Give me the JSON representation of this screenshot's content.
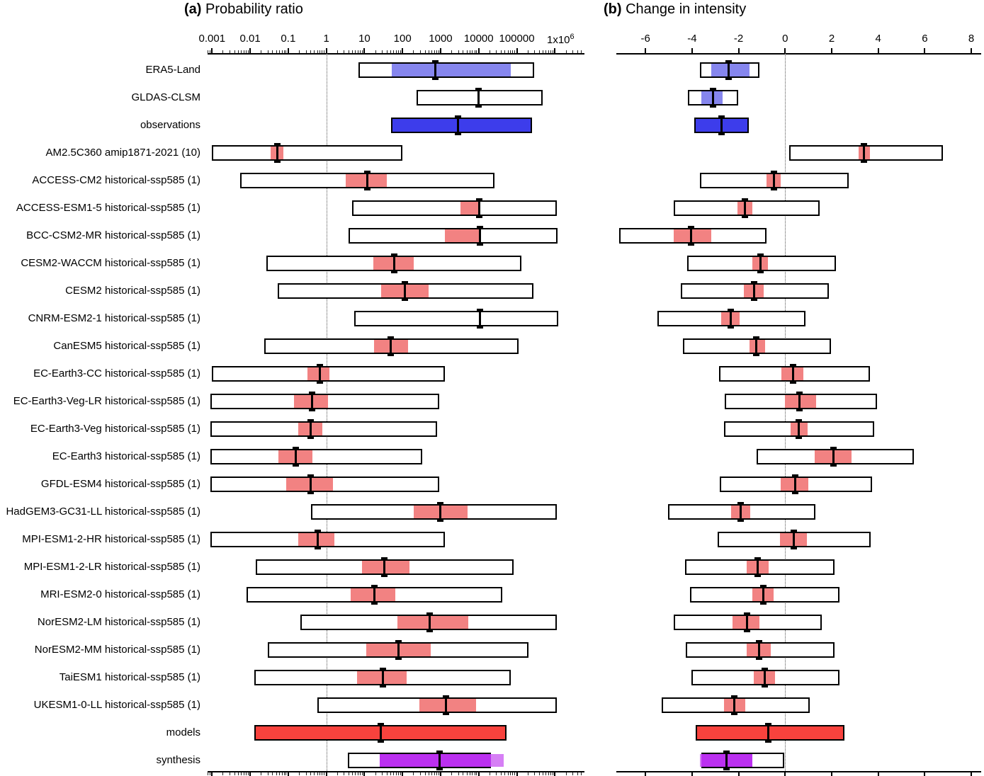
{
  "chart_data": {
    "type": "table",
    "description_title_a": "Probability ratio",
    "description_title_b": "Change in intensity",
    "panels": {
      "a": {
        "title_prefix": "(a)",
        "title": "Probability ratio",
        "scale": "log",
        "tick_values": [
          0.001,
          0.01,
          0.1,
          1,
          10,
          100,
          1000,
          10000,
          100000,
          1000000
        ],
        "tick_labels": [
          "0.001",
          "0.01",
          "0.1",
          "1",
          "10",
          "100",
          "1000",
          "10000",
          "100000",
          "1x10"
        ],
        "last_tick_superscript": "6",
        "reference_line": 1
      },
      "b": {
        "title_prefix": "(b)",
        "title": "Change in intensity",
        "scale": "linear",
        "tick_values": [
          -6,
          -4,
          -2,
          0,
          2,
          4,
          6,
          8
        ],
        "tick_labels": [
          "-6",
          "-4",
          "-2",
          "0",
          "2",
          "4",
          "6",
          "8"
        ],
        "reference_line": 0
      }
    },
    "colors": {
      "observation_fill": "#3d3deb",
      "observation_band": "#8686ee",
      "model_band": "#f28282",
      "models_fill": "#f8423d",
      "synthesis_dark": "#bb30f0",
      "synthesis_light": "#d67ff5",
      "box_fill": "#ffffff",
      "box_border": "#000000"
    },
    "rows": [
      {
        "label": "ERA5-Land",
        "group": "obs-dataset",
        "pr": {
          "range": [
            7,
            290000
          ],
          "best": [
            52,
            70000
          ],
          "marker": 730
        },
        "di": {
          "range": [
            -3.65,
            -1.11
          ],
          "best": [
            -3.17,
            -1.52
          ],
          "marker": -2.44
        }
      },
      {
        "label": "GLDAS-CLSM",
        "group": "obs-dataset",
        "pr": {
          "range": [
            230,
            480000
          ],
          "best": null,
          "marker": 10000
        },
        "di": {
          "range": [
            -4.18,
            -2.03
          ],
          "best": [
            -3.6,
            -2.69
          ],
          "marker": -3.09
        }
      },
      {
        "label": "observations",
        "group": "observations",
        "pr": {
          "range": [
            50,
            250000
          ],
          "best": null,
          "marker": 2800
        },
        "di": {
          "range": [
            -3.91,
            -1.57
          ],
          "best": null,
          "marker": -2.74
        }
      },
      {
        "label": "AM2.5C360 amip1871-2021 (10)",
        "group": "model",
        "pr": {
          "range": [
            0.001,
            100
          ],
          "best": [
            0.034,
            0.073
          ],
          "marker": 0.052
        },
        "di": {
          "range": [
            0.18,
            6.78
          ],
          "best": [
            3.17,
            3.65
          ],
          "marker": 3.4
        }
      },
      {
        "label": "ACCESS-CM2 historical-ssp585 (1)",
        "group": "model",
        "pr": {
          "range": [
            0.0054,
            26000
          ],
          "best": [
            3.2,
            39
          ],
          "marker": 12
        },
        "di": {
          "range": [
            -3.65,
            2.74
          ],
          "best": [
            -0.81,
            -0.2
          ],
          "marker": -0.49
        }
      },
      {
        "label": "ACCESS-ESM1-5 historical-ssp585 (1)",
        "group": "model",
        "pr": {
          "range": [
            4.8,
            1100000
          ],
          "best": [
            3300,
            10000
          ],
          "marker": 10500
        },
        "di": {
          "range": [
            -4.79,
            1.47
          ],
          "best": [
            -2.05,
            -1.4
          ],
          "marker": -1.72
        }
      },
      {
        "label": "BCC-CSM2-MR historical-ssp585 (1)",
        "group": "model",
        "pr": {
          "range": [
            3.8,
            1150000
          ],
          "best": [
            1300,
            10000
          ],
          "marker": 11000
        },
        "di": {
          "range": [
            -7.12,
            -0.81
          ],
          "best": [
            -4.79,
            -3.17
          ],
          "marker": -4.04
        }
      },
      {
        "label": "CESM2-WACCM historical-ssp585 (1)",
        "group": "model",
        "pr": {
          "range": [
            0.027,
            130000
          ],
          "best": [
            17,
            200
          ],
          "marker": 60
        },
        "di": {
          "range": [
            -4.21,
            2.18
          ],
          "best": [
            -1.4,
            -0.73
          ],
          "marker": -1.07
        }
      },
      {
        "label": "CESM2 historical-ssp585 (1)",
        "group": "model",
        "pr": {
          "range": [
            0.052,
            270000
          ],
          "best": [
            27,
            475
          ],
          "marker": 114
        },
        "di": {
          "range": [
            -4.48,
            1.88
          ],
          "best": [
            -1.77,
            -0.93
          ],
          "marker": -1.34
        }
      },
      {
        "label": "CNRM-ESM2-1 historical-ssp585 (1)",
        "group": "model",
        "pr": {
          "range": [
            5.3,
            1200000
          ],
          "best": null,
          "marker": 11000
        },
        "di": {
          "range": [
            -5.48,
            0.86
          ],
          "best": [
            -2.76,
            -1.95
          ],
          "marker": -2.35
        }
      },
      {
        "label": "CanESM5 historical-ssp585 (1)",
        "group": "model",
        "pr": {
          "range": [
            0.023,
            110000
          ],
          "best": [
            18,
            140
          ],
          "marker": 48
        },
        "di": {
          "range": [
            -4.38,
            1.98
          ],
          "best": [
            -1.52,
            -0.86
          ],
          "marker": -1.24
        }
      },
      {
        "label": "EC-Earth3-CC historical-ssp585 (1)",
        "group": "model",
        "pr": {
          "range": [
            0.001,
            1300
          ],
          "best": [
            0.32,
            1.2
          ],
          "marker": 0.69
        },
        "di": {
          "range": [
            -2.84,
            3.63
          ],
          "best": [
            -0.15,
            0.79
          ],
          "marker": 0.33
        }
      },
      {
        "label": "EC-Earth3-Veg-LR historical-ssp585 (1)",
        "group": "model",
        "pr": {
          "range": [
            0.0009,
            900
          ],
          "best": [
            0.14,
            1.1
          ],
          "marker": 0.43
        },
        "di": {
          "range": [
            -2.59,
            3.94
          ],
          "best": [
            -0.02,
            1.32
          ],
          "marker": 0.63
        }
      },
      {
        "label": "EC-Earth3-Veg historical-ssp585 (1)",
        "group": "model",
        "pr": {
          "range": [
            0.0009,
            820
          ],
          "best": [
            0.18,
            0.8
          ],
          "marker": 0.39
        },
        "di": {
          "range": [
            -2.64,
            3.84
          ],
          "best": [
            0.23,
            0.96
          ],
          "marker": 0.59
        }
      },
      {
        "label": "EC-Earth3 historical-ssp585 (1)",
        "group": "model",
        "pr": {
          "range": [
            0.0009,
            330
          ],
          "best": [
            0.055,
            0.43
          ],
          "marker": 0.16
        },
        "di": {
          "range": [
            -1.22,
            5.53
          ],
          "best": [
            1.27,
            2.86
          ],
          "marker": 2.08
        }
      },
      {
        "label": "GFDL-ESM4 historical-ssp585 (1)",
        "group": "model",
        "pr": {
          "range": [
            0.0009,
            900
          ],
          "best": [
            0.089,
            1.5
          ],
          "marker": 0.39
        },
        "di": {
          "range": [
            -2.81,
            3.73
          ],
          "best": [
            -0.2,
            1.0
          ],
          "marker": 0.43
        }
      },
      {
        "label": "HadGEM3-GC31-LL historical-ssp585 (1)",
        "group": "model",
        "pr": {
          "range": [
            0.39,
            1100000
          ],
          "best": [
            200,
            5000
          ],
          "marker": 970
        },
        "di": {
          "range": [
            -5.02,
            1.3
          ],
          "best": [
            -2.33,
            -1.5
          ],
          "marker": -1.91
        }
      },
      {
        "label": "MPI-ESM1-2-HR historical-ssp585 (1)",
        "group": "model",
        "pr": {
          "range": [
            0.0009,
            1300
          ],
          "best": [
            0.18,
            1.6
          ],
          "marker": 0.6
        },
        "di": {
          "range": [
            -2.89,
            3.67
          ],
          "best": [
            -0.22,
            0.93
          ],
          "marker": 0.36
        }
      },
      {
        "label": "MPI-ESM1-2-LR historical-ssp585 (1)",
        "group": "model",
        "pr": {
          "range": [
            0.014,
            81000
          ],
          "best": [
            8.5,
            150
          ],
          "marker": 33
        },
        "di": {
          "range": [
            -4.31,
            2.11
          ],
          "best": [
            -1.64,
            -0.71
          ],
          "marker": -1.17
        }
      },
      {
        "label": "MRI-ESM2-0 historical-ssp585 (1)",
        "group": "model",
        "pr": {
          "range": [
            0.008,
            42000
          ],
          "best": [
            4.4,
            66
          ],
          "marker": 18
        },
        "di": {
          "range": [
            -4.08,
            2.33
          ],
          "best": [
            -1.4,
            -0.49
          ],
          "marker": -0.93
        }
      },
      {
        "label": "NorESM2-LM historical-ssp585 (1)",
        "group": "model",
        "pr": {
          "range": [
            0.21,
            1100000
          ],
          "best": [
            72,
            5400
          ],
          "marker": 510
        },
        "di": {
          "range": [
            -4.79,
            1.57
          ],
          "best": [
            -2.25,
            -1.11
          ],
          "marker": -1.64
        }
      },
      {
        "label": "NorESM2-MM historical-ssp585 (1)",
        "group": "model",
        "pr": {
          "range": [
            0.029,
            200000
          ],
          "best": [
            11,
            560
          ],
          "marker": 80
        },
        "di": {
          "range": [
            -4.26,
            2.11
          ],
          "best": [
            -1.64,
            -0.61
          ],
          "marker": -1.11
        }
      },
      {
        "label": "TaiESM1 historical-ssp585 (1)",
        "group": "model",
        "pr": {
          "range": [
            0.013,
            70000
          ],
          "best": [
            6.4,
            130
          ],
          "marker": 31
        },
        "di": {
          "range": [
            -4.04,
            2.33
          ],
          "best": [
            -1.34,
            -0.43
          ],
          "marker": -0.89
        }
      },
      {
        "label": "UKESM1-0-LL historical-ssp585 (1)",
        "group": "model",
        "pr": {
          "range": [
            0.57,
            1100000
          ],
          "best": [
            280,
            8500
          ],
          "marker": 1400
        },
        "di": {
          "range": [
            -5.3,
            1.07
          ],
          "best": [
            -2.64,
            -1.72
          ],
          "marker": -2.18
        }
      },
      {
        "label": "models",
        "group": "models-summary",
        "pr": {
          "range": [
            0.013,
            53000
          ],
          "best": null,
          "marker": 27
        },
        "di": {
          "range": [
            -3.84,
            2.54
          ],
          "best": null,
          "marker": -0.71
        }
      },
      {
        "label": "synthesis",
        "group": "synthesis",
        "pr": {
          "range": [
            3.6,
            21000
          ],
          "outer": [
            25.5,
            46000
          ],
          "inner_bar": [
            25.5,
            21000
          ],
          "marker": 940
        },
        "di": {
          "range": [
            -3.6,
            -0.05
          ],
          "outer": [
            -3.67,
            -1.4
          ],
          "inner_bar": [
            -3.6,
            -1.4
          ],
          "marker": -2.51
        }
      }
    ]
  }
}
